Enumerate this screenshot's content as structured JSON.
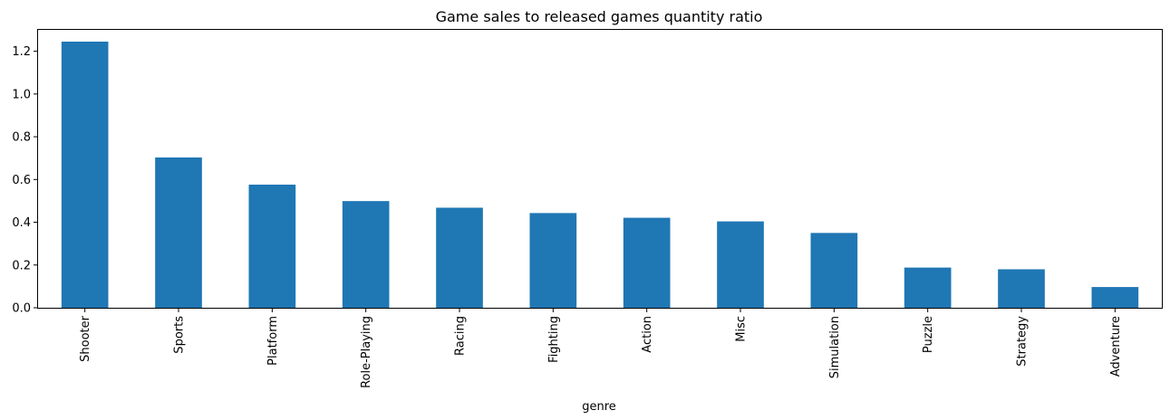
{
  "chart_data": {
    "type": "bar",
    "title": "Game sales to released games quantity ratio",
    "xlabel": "genre",
    "ylabel": "",
    "categories": [
      "Shooter",
      "Sports",
      "Platform",
      "Role-Playing",
      "Racing",
      "Fighting",
      "Action",
      "Misc",
      "Simulation",
      "Puzzle",
      "Strategy",
      "Adventure"
    ],
    "values": [
      1.245,
      0.703,
      0.576,
      0.499,
      0.468,
      0.443,
      0.421,
      0.404,
      0.35,
      0.188,
      0.18,
      0.097
    ],
    "ylim": [
      0,
      1.3
    ],
    "yticks": [
      "0.0",
      "0.2",
      "0.4",
      "0.6",
      "0.8",
      "1.0",
      "1.2"
    ],
    "grid": false,
    "colors": {
      "bar": "#1f77b4",
      "axis": "#000000",
      "background": "#ffffff"
    }
  }
}
